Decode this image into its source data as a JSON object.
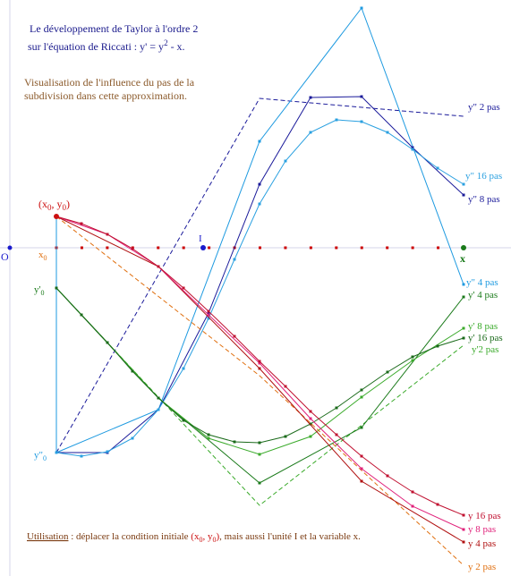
{
  "header": {
    "line1": "Le développement de Taylor à l'ordre 2",
    "line2_prefix": "sur l'équation de Riccati : y' = y",
    "line2_sup": "2",
    "line2_suffix": " - x.",
    "line3": "Visualisation de l'influence du pas de la",
    "line4": "subdivision dans cette approximation."
  },
  "footer": {
    "underlined": "Utilisation",
    "part1": " : déplacer la condition initiale ",
    "xy_open": "(x",
    "sub0a": "0",
    "comma": ", y",
    "sub0b": "0",
    "close": ")",
    "part2": ", mais aussi l'unité I et la variable x."
  },
  "labels": {
    "origin": "O",
    "unit": "I",
    "x_var": "x",
    "x0": "x",
    "x0_sub": "0",
    "y0p": "y'",
    "y0p_sub": "0",
    "y0pp": "y\"",
    "y0pp_sub": "0",
    "point_open": "(x",
    "point_sub_a": "0",
    "point_mid": ", y",
    "point_sub_b": "0",
    "point_close": ")"
  },
  "curve_labels": {
    "ypp2": "y\" 2 pas",
    "ypp16": "y\" 16 pas",
    "ypp8": "y\" 8 pas",
    "ypp4": "y\" 4 pas",
    "yp4": "y' 4 pas",
    "yp8": "y' 8 pas",
    "yp16": "y' 16 pas",
    "yp2": "y'2 pas",
    "y16": "y 16 pas",
    "y8": "y 8 pas",
    "y4": "y 4 pas",
    "y2": "y 2 pas"
  },
  "colors": {
    "title": "#1a1a8c",
    "subtitle": "#8b5a2b",
    "y2": "#e07010",
    "y4": "#b01010",
    "y8": "#e0207a",
    "y16": "#c01030",
    "yp": "#1a7a1a",
    "ypp4": "#1e9ae0",
    "ypp8": "#1a1a9a",
    "ypp16": "#2aa0e0",
    "axis_origin": "#1a1acc",
    "x_axis_dots": "#cc0000"
  }
}
